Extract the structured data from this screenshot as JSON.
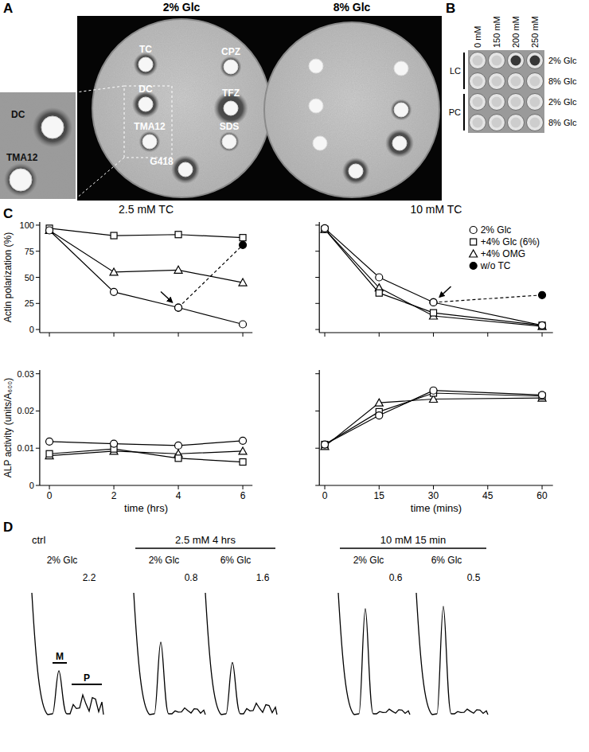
{
  "panel_labels": [
    "A",
    "B",
    "C",
    "D"
  ],
  "panel_a": {
    "plates": [
      {
        "title": "2% Glc",
        "discs": [
          {
            "label": "TC",
            "halo": 1.7
          },
          {
            "label": "CPZ",
            "halo": 1.5
          },
          {
            "label": "DC",
            "halo": 1.9
          },
          {
            "label": "TFZ",
            "halo": 2.4
          },
          {
            "label": "TMA12",
            "halo": 1.5
          },
          {
            "label": "SDS",
            "halo": 1.4
          },
          {
            "label": "G418",
            "halo": 2.0
          }
        ]
      },
      {
        "title": "8% Glc",
        "discs": [
          {
            "halo": 1.0
          },
          {
            "halo": 1.0
          },
          {
            "halo": 1.0
          },
          {
            "halo": 1.5
          },
          {
            "halo": 1.0
          },
          {
            "halo": 2.0
          },
          {
            "halo": 1.9
          }
        ]
      }
    ]
  },
  "panel_b": {
    "columns": [
      "0 mM",
      "150 mM",
      "200 mM",
      "250 mM"
    ],
    "groups": [
      "LC",
      "PC"
    ],
    "rows": [
      {
        "label": "2% Glc",
        "wells": [
          0,
          0,
          1,
          1
        ]
      },
      {
        "label": "8% Glc",
        "wells": [
          0,
          0,
          0,
          0
        ]
      },
      {
        "label": "2% Glc",
        "wells": [
          0,
          0,
          0,
          0
        ]
      },
      {
        "label": "8% Glc",
        "wells": [
          0,
          0,
          0,
          0
        ]
      }
    ]
  },
  "chart_data": [
    {
      "type": "line",
      "title": "2.5 mM TC",
      "y_label": "Actin polarization (%)",
      "x": [
        0,
        2,
        4,
        6
      ],
      "xlim": [
        -0.3,
        6.3
      ],
      "xticks": [
        0,
        2,
        4,
        6
      ],
      "ylim": [
        -3,
        103
      ],
      "yticks": [
        0,
        25,
        50,
        75,
        100
      ],
      "tick_labels": "y",
      "series": [
        {
          "marker": "circle",
          "values": [
            95,
            36,
            21,
            5
          ]
        },
        {
          "marker": "square",
          "values": [
            97,
            90,
            91,
            88
          ]
        },
        {
          "marker": "triangle",
          "values": [
            95,
            55,
            57,
            45
          ]
        },
        {
          "marker": "filled_circle",
          "line_style": "dashed",
          "x": [
            4,
            6
          ],
          "values": [
            21,
            81
          ]
        }
      ]
    },
    {
      "type": "line",
      "title": "10 mM TC",
      "x": [
        0,
        15,
        30,
        60
      ],
      "xlim": [
        -1.5,
        63
      ],
      "xticks": [
        0,
        15,
        30,
        45,
        60
      ],
      "ylim": [
        -3,
        103
      ],
      "yticks": [
        0,
        25,
        50,
        75,
        100
      ],
      "tick_labels": false,
      "legend": "upper right",
      "series": [
        {
          "name": "2% Glc",
          "marker": "circle",
          "values": [
            97,
            50,
            26,
            4
          ]
        },
        {
          "name": "+4% Glc (6%)",
          "marker": "square",
          "values": [
            96,
            35,
            16,
            4
          ]
        },
        {
          "name": "+4% OMG",
          "marker": "triangle",
          "values": [
            96,
            40,
            13,
            3
          ]
        },
        {
          "name": "w/o TC",
          "marker": "filled_circle",
          "line_style": "dashed",
          "x": [
            30,
            60
          ],
          "values": [
            26,
            33
          ]
        }
      ]
    },
    {
      "type": "line",
      "y_label": "ALP activity (units/A₆₀₀)",
      "x_label": "time (hrs)",
      "x": [
        0,
        2,
        4,
        6
      ],
      "xlim": [
        -0.3,
        6.3
      ],
      "xticks": [
        0,
        2,
        4,
        6
      ],
      "ylim": [
        0,
        0.031
      ],
      "yticks": [
        0,
        0.01,
        0.02,
        0.03
      ],
      "series": [
        {
          "marker": "circle",
          "values": [
            0.0118,
            0.0112,
            0.0107,
            0.012
          ]
        },
        {
          "marker": "square",
          "values": [
            0.0085,
            0.0098,
            0.0073,
            0.0063
          ]
        },
        {
          "marker": "triangle",
          "values": [
            0.008,
            0.0092,
            0.0085,
            0.0092
          ]
        }
      ]
    },
    {
      "type": "line",
      "x_label": "time (mins)",
      "x": [
        0,
        15,
        30,
        60
      ],
      "xlim": [
        -1.5,
        63
      ],
      "xticks": [
        0,
        15,
        30,
        45,
        60
      ],
      "ylim": [
        0,
        0.031
      ],
      "yticks": [
        0,
        0.01,
        0.02,
        0.03
      ],
      "tick_labels": "x",
      "series": [
        {
          "marker": "circle",
          "values": [
            0.011,
            0.0188,
            0.0255,
            0.0243
          ]
        },
        {
          "marker": "square",
          "values": [
            0.011,
            0.0198,
            0.0248,
            0.024
          ]
        },
        {
          "marker": "triangle",
          "values": [
            0.0105,
            0.0222,
            0.0232,
            0.0235
          ]
        }
      ]
    }
  ],
  "panel_d": {
    "peak_labels": [
      "M",
      "P"
    ],
    "groups": [
      {
        "label": "ctrl",
        "traces": [
          {
            "label": "2% Glc",
            "ratio": 2.2,
            "m_height": 0.38,
            "p_height": 0.16
          }
        ]
      },
      {
        "label": "2.5 mM 4 hrs",
        "traces": [
          {
            "label": "2% Glc",
            "ratio": 0.8,
            "m_height": 0.62,
            "p_height": 0.05
          },
          {
            "label": "6% Glc",
            "ratio": 1.6,
            "m_height": 0.45,
            "p_height": 0.09
          }
        ]
      },
      {
        "label": "10 mM 15 min",
        "traces": [
          {
            "label": "2% Glc",
            "ratio": 0.6,
            "m_height": 0.9,
            "p_height": 0.04
          },
          {
            "label": "6% Glc",
            "ratio": 0.5,
            "m_height": 0.92,
            "p_height": 0.04
          }
        ]
      }
    ]
  }
}
